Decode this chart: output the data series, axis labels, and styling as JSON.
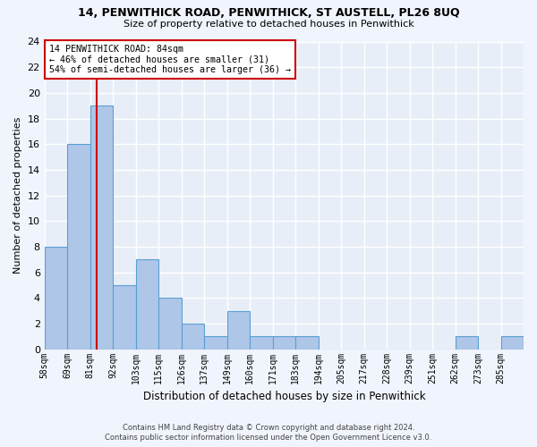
{
  "title1": "14, PENWITHICK ROAD, PENWITHICK, ST AUSTELL, PL26 8UQ",
  "title2": "Size of property relative to detached houses in Penwithick",
  "xlabel": "Distribution of detached houses by size in Penwithick",
  "ylabel": "Number of detached properties",
  "bin_labels": [
    "58sqm",
    "69sqm",
    "81sqm",
    "92sqm",
    "103sqm",
    "115sqm",
    "126sqm",
    "137sqm",
    "149sqm",
    "160sqm",
    "171sqm",
    "183sqm",
    "194sqm",
    "205sqm",
    "217sqm",
    "228sqm",
    "239sqm",
    "251sqm",
    "262sqm",
    "273sqm",
    "285sqm"
  ],
  "bar_values": [
    8,
    16,
    19,
    5,
    7,
    4,
    2,
    1,
    3,
    1,
    1,
    1,
    0,
    0,
    0,
    0,
    0,
    0,
    1,
    0,
    1
  ],
  "bar_color": "#aec6e8",
  "bar_edgecolor": "#5a9fd4",
  "vline_x": 3,
  "vline_color": "#cc0000",
  "ylim": [
    0,
    24
  ],
  "yticks": [
    0,
    2,
    4,
    6,
    8,
    10,
    12,
    14,
    16,
    18,
    20,
    22,
    24
  ],
  "annotation_line1": "14 PENWITHICK ROAD: 84sqm",
  "annotation_line2": "← 46% of detached houses are smaller (31)",
  "annotation_line3": "54% of semi-detached houses are larger (36) →",
  "annotation_box_color": "#ffffff",
  "annotation_box_edgecolor": "#cc0000",
  "footer1": "Contains HM Land Registry data © Crown copyright and database right 2024.",
  "footer2": "Contains public sector information licensed under the Open Government Licence v3.0.",
  "bg_color": "#e8eef8",
  "fig_bg_color": "#f0f4fc"
}
